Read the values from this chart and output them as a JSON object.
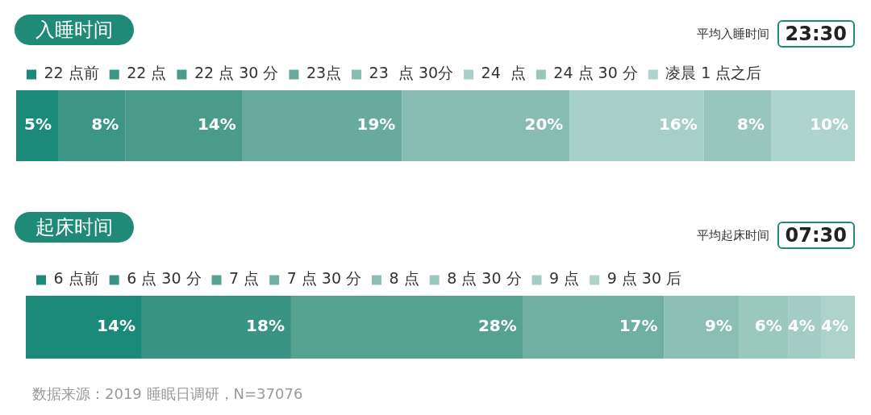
{
  "chart_data": [
    {
      "type": "bar",
      "orientation": "horizontal",
      "stacked": true,
      "title": "入睡时间",
      "annotations": [
        "平均入睡时间",
        "23:30"
      ],
      "categories": [
        null
      ],
      "tick_labels": false,
      "legend": "top left",
      "series": [
        {
          "name": "22 点前",
          "color": "#1b8a78",
          "values": [
            5
          ],
          "value_labels": [
            "5%"
          ]
        },
        {
          "name": "22 点",
          "color": "#3d9585",
          "values": [
            8
          ],
          "value_labels": [
            "8%"
          ]
        },
        {
          "name": "22 点 30 分",
          "color": "#4a9b8a",
          "values": [
            14
          ],
          "value_labels": [
            "14%"
          ]
        },
        {
          "name": "23点",
          "color": "#66ab9d",
          "values": [
            19
          ],
          "value_labels": [
            "19%"
          ]
        },
        {
          "name": "23  点 30分",
          "color": "#86bcb1",
          "values": [
            20
          ],
          "value_labels": [
            "20%"
          ]
        },
        {
          "name": "24  点",
          "color": "#a6d0c7",
          "values": [
            16
          ],
          "value_labels": [
            "16%"
          ]
        },
        {
          "name": "24 点 30 分",
          "color": "#98c6bc",
          "values": [
            8
          ],
          "value_labels": [
            "8%"
          ]
        },
        {
          "name": "凌晨 1 点之后",
          "color": "#aed5cd",
          "values": [
            10
          ],
          "value_labels": [
            "10%"
          ]
        }
      ]
    },
    {
      "type": "bar",
      "orientation": "horizontal",
      "stacked": true,
      "title": "起床时间",
      "annotations": [
        "平均起床时间",
        "07:30",
        "数据来源：2019 睡眠日调研，N=37076"
      ],
      "categories": [
        null
      ],
      "tick_labels": false,
      "legend": "top left",
      "series": [
        {
          "name": "6 点前",
          "color": "#1b8a78",
          "values": [
            14
          ],
          "value_labels": [
            "14%"
          ]
        },
        {
          "name": "6 点 30 分",
          "color": "#3a9483",
          "values": [
            18
          ],
          "value_labels": [
            "18%"
          ]
        },
        {
          "name": "7 点",
          "color": "#55a290",
          "values": [
            28
          ],
          "value_labels": [
            "28%"
          ]
        },
        {
          "name": "7 点 30 分",
          "color": "#6fb0a3",
          "values": [
            17
          ],
          "value_labels": [
            "17%"
          ]
        },
        {
          "name": "8 点",
          "color": "#8cbfb4",
          "values": [
            9
          ],
          "value_labels": [
            "9%"
          ]
        },
        {
          "name": "8 点 30 分",
          "color": "#9ac8bd",
          "values": [
            6
          ],
          "value_labels": [
            "6%"
          ]
        },
        {
          "name": "9 点",
          "color": "#a3cdc4",
          "values": [
            4
          ],
          "value_labels": [
            "4%"
          ]
        },
        {
          "name": "9 点 30 后",
          "color": "#add3cb",
          "values": [
            4
          ],
          "value_labels": [
            "4%"
          ]
        }
      ]
    }
  ]
}
